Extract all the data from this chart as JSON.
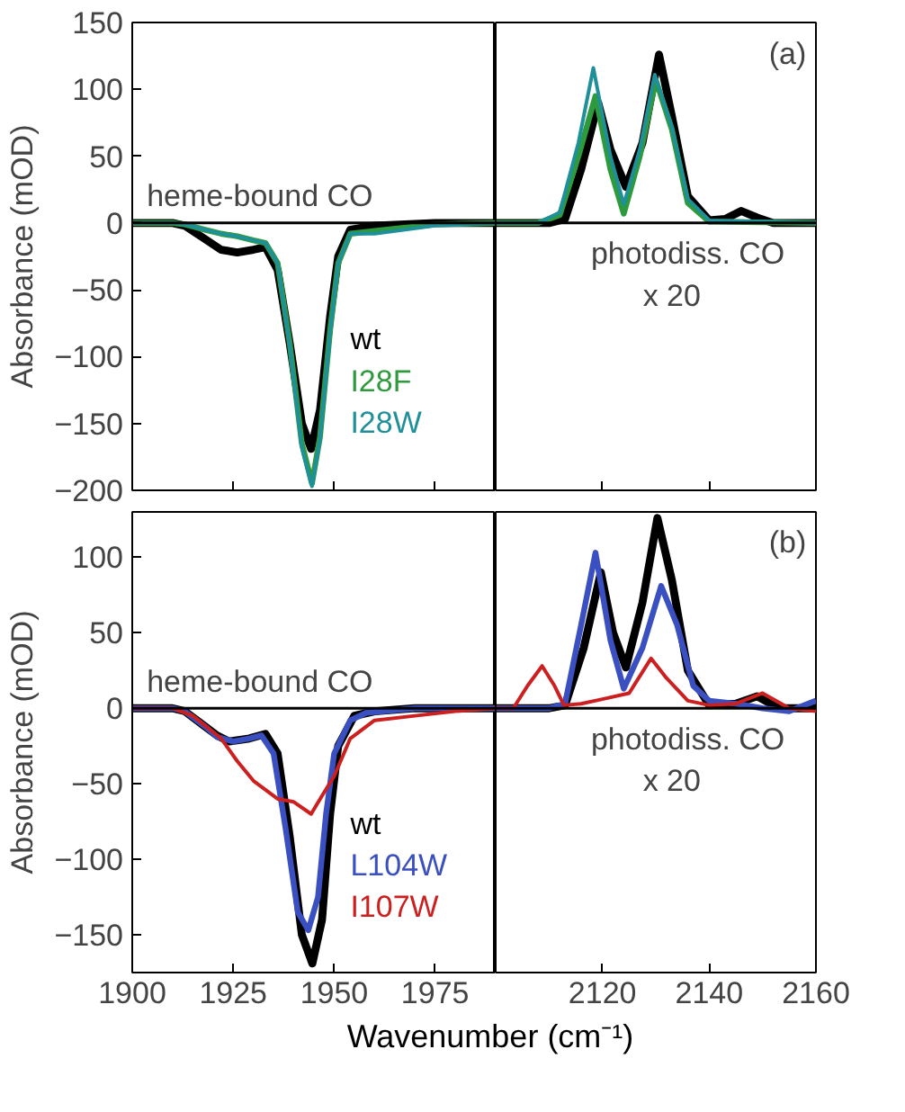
{
  "chart_data": [
    {
      "type": "line",
      "ylabel": "Absorbance (mOD)",
      "xlim": [
        1900,
        1990
      ],
      "ylim": [
        -200,
        150
      ],
      "xticks": [
        1900,
        1925,
        1950,
        1975
      ],
      "yticks": [
        -200,
        -150,
        -100,
        -50,
        0,
        50,
        100,
        150
      ],
      "tick_labels": "y",
      "legend": false,
      "grid": false,
      "annotations": [
        "heme-bound CO"
      ],
      "ref_lines": [
        {
          "axis": "y",
          "value": 0,
          "color": "#000000"
        }
      ],
      "series": [
        {
          "name": "wt",
          "color": "#000000",
          "x": [
            1900,
            1910,
            1913,
            1918,
            1922,
            1926,
            1930,
            1933,
            1936,
            1939,
            1942,
            1944.3,
            1946.5,
            1949,
            1951,
            1954,
            1960,
            1975,
            1990
          ],
          "values": [
            0,
            0,
            -2,
            -12,
            -20,
            -22,
            -20,
            -18,
            -35,
            -90,
            -150,
            -169,
            -140,
            -70,
            -25,
            -5,
            -2,
            0,
            0
          ]
        },
        {
          "name": "I28F",
          "color": "#2e9a3e",
          "x": [
            1900,
            1910,
            1913,
            1918,
            1922,
            1926,
            1930,
            1933,
            1936,
            1939,
            1942,
            1944.5,
            1946.5,
            1949,
            1951,
            1954,
            1960,
            1975,
            1990
          ],
          "values": [
            0,
            0,
            -1,
            -5,
            -8,
            -10,
            -13,
            -15,
            -30,
            -90,
            -165,
            -195,
            -160,
            -80,
            -30,
            -8,
            -6,
            -1,
            0
          ]
        },
        {
          "name": "I28W",
          "color": "#1f8f9a",
          "x": [
            1900,
            1910,
            1913,
            1918,
            1922,
            1926,
            1930,
            1933,
            1936,
            1939,
            1942,
            1944.5,
            1946.5,
            1949,
            1951,
            1954,
            1960,
            1975,
            1990
          ],
          "values": [
            0,
            0,
            -1,
            -5,
            -8,
            -10,
            -13,
            -15,
            -30,
            -92,
            -168,
            -197,
            -162,
            -82,
            -30,
            -8,
            -8,
            -2,
            0
          ]
        }
      ]
    },
    {
      "type": "line",
      "xlim": [
        2100,
        2160
      ],
      "ylim": [
        -200,
        150
      ],
      "xticks": [
        2120,
        2140,
        2160
      ],
      "yticks": [
        -200,
        -150,
        -100,
        -50,
        0,
        50,
        100,
        150
      ],
      "tick_labels": false,
      "legend": false,
      "grid": false,
      "annotations": [
        "photodiss. CO",
        "x 20",
        "(a)"
      ],
      "ref_lines": [
        {
          "axis": "y",
          "value": 0,
          "color": "#000000"
        }
      ],
      "series": [
        {
          "color": "#000000",
          "x": [
            2100,
            2110,
            2113,
            2116,
            2119.2,
            2121.5,
            2124.4,
            2127.5,
            2130.6,
            2133,
            2136,
            2140,
            2143,
            2146,
            2149,
            2152,
            2160
          ],
          "values": [
            0,
            0,
            3,
            40,
            90,
            55,
            27,
            60,
            126,
            80,
            20,
            2,
            3,
            9,
            4,
            0,
            0
          ]
        },
        {
          "color": "#2e9a3e",
          "x": [
            2100,
            2108,
            2112,
            2115.5,
            2118.7,
            2121.5,
            2124,
            2127,
            2130,
            2133,
            2136,
            2140,
            2160
          ],
          "values": [
            0,
            0,
            6,
            50,
            95,
            40,
            7,
            50,
            107,
            70,
            15,
            1,
            0
          ]
        },
        {
          "color": "#1f8f9a",
          "x": [
            2100,
            2108,
            2112,
            2115.5,
            2118.3,
            2121.5,
            2124,
            2127,
            2129.8,
            2133,
            2136,
            2140,
            2160
          ],
          "values": [
            0,
            0,
            8,
            60,
            116,
            50,
            14,
            55,
            111,
            72,
            18,
            2,
            0
          ]
        }
      ]
    },
    {
      "type": "line",
      "ylabel": "Absorbance (mOD)",
      "xlabel": "Wavenumber (cm⁻¹)",
      "xlim": [
        1900,
        1990
      ],
      "ylim": [
        -175,
        130
      ],
      "xticks": [
        1900,
        1925,
        1950,
        1975
      ],
      "yticks": [
        -150,
        -100,
        -50,
        0,
        50,
        100
      ],
      "legend": false,
      "grid": false,
      "annotations": [
        "heme-bound CO"
      ],
      "ref_lines": [
        {
          "axis": "y",
          "value": 0,
          "color": "#000000"
        }
      ],
      "series": [
        {
          "name": "wt",
          "color": "#000000",
          "x": [
            1900,
            1910,
            1913,
            1918,
            1921,
            1924,
            1929,
            1933,
            1936,
            1939,
            1942,
            1944.6,
            1947,
            1949,
            1951,
            1955,
            1960,
            1970,
            1990
          ],
          "values": [
            0,
            0,
            -2,
            -12,
            -18,
            -22,
            -20,
            -17,
            -30,
            -85,
            -150,
            -169,
            -140,
            -70,
            -25,
            -5,
            -2,
            0,
            0
          ]
        },
        {
          "name": "L104W",
          "color": "#3a4fc0",
          "x": [
            1900,
            1910,
            1913,
            1918,
            1921,
            1925,
            1929,
            1932,
            1935,
            1938,
            1941,
            1943.6,
            1946,
            1948,
            1950,
            1954,
            1958,
            1970,
            1990
          ],
          "values": [
            0,
            0,
            -2,
            -12,
            -19,
            -22,
            -20,
            -18,
            -30,
            -80,
            -135,
            -147,
            -125,
            -70,
            -30,
            -8,
            -3,
            0,
            0
          ]
        },
        {
          "name": "I107W",
          "color": "#cc2020",
          "x": [
            1900,
            1910,
            1915,
            1922,
            1926,
            1930,
            1936,
            1940,
            1944.3,
            1947,
            1950,
            1954,
            1960,
            1970,
            1980,
            1990
          ],
          "values": [
            0,
            0,
            -5,
            -20,
            -35,
            -48,
            -60,
            -62,
            -70,
            -58,
            -45,
            -20,
            -8,
            -5,
            -2,
            0
          ]
        }
      ]
    },
    {
      "type": "line",
      "xlim": [
        2100,
        2160
      ],
      "ylim": [
        -175,
        130
      ],
      "xticks": [
        2120,
        2140,
        2160
      ],
      "yticks": [
        -150,
        -100,
        -50,
        0,
        50,
        100
      ],
      "tick_labels": "x",
      "legend": false,
      "grid": false,
      "annotations": [
        "photodiss. CO",
        "x 20",
        "(b)"
      ],
      "ref_lines": [
        {
          "axis": "y",
          "value": 0,
          "color": "#000000"
        }
      ],
      "series": [
        {
          "color": "#000000",
          "x": [
            2100,
            2110,
            2113,
            2116.5,
            2119.7,
            2122,
            2124.4,
            2127.5,
            2130.3,
            2133,
            2136,
            2140,
            2145,
            2149,
            2153,
            2160
          ],
          "values": [
            0,
            0,
            2,
            40,
            90,
            50,
            27,
            70,
            126,
            85,
            25,
            2,
            3,
            8,
            0,
            0
          ]
        },
        {
          "color": "#3a4fc0",
          "x": [
            2100,
            2110,
            2113,
            2116,
            2118.7,
            2121.5,
            2124,
            2127.5,
            2131,
            2134,
            2137,
            2140,
            2145,
            2150,
            2155,
            2160
          ],
          "values": [
            0,
            0,
            3,
            55,
            103,
            45,
            13,
            40,
            81,
            55,
            15,
            5,
            3,
            0,
            -2,
            5
          ]
        },
        {
          "color": "#cc2020",
          "x": [
            2100,
            2103.3,
            2106,
            2108.7,
            2111,
            2112.8,
            2116,
            2120,
            2125,
            2129.1,
            2132,
            2136,
            2140,
            2145,
            2150,
            2155,
            2160
          ],
          "values": [
            0,
            0,
            15,
            28,
            15,
            2,
            3,
            6,
            10,
            33,
            20,
            5,
            2,
            3,
            10,
            0,
            -2
          ]
        }
      ]
    }
  ]
}
